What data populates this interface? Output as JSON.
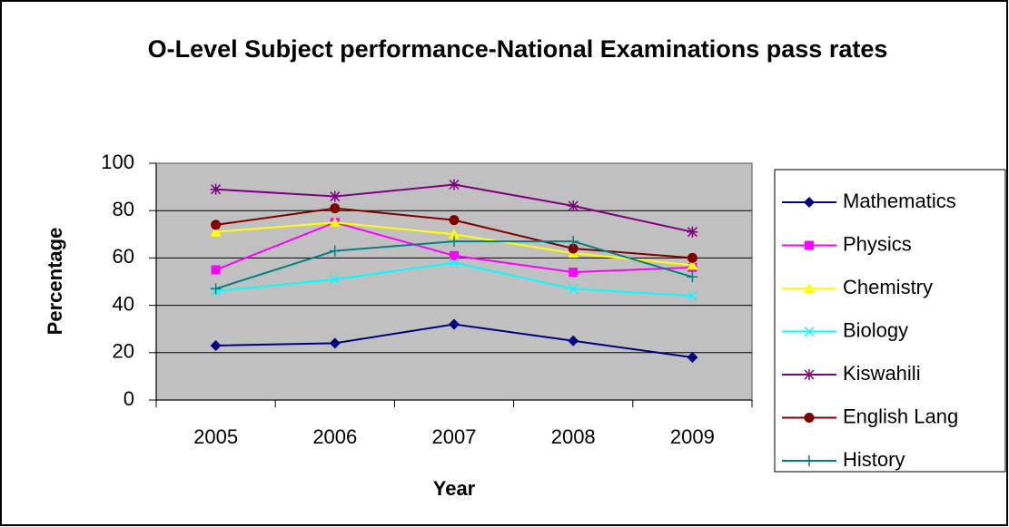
{
  "chart_data": {
    "type": "line",
    "title": "O-Level Subject performance-National Examinations pass rates",
    "x_label": "Year",
    "y_label": "Percentage",
    "categories": [
      "2005",
      "2006",
      "2007",
      "2008",
      "2009"
    ],
    "series": [
      {
        "name": "Mathematics",
        "color": "#000080",
        "marker": "diamond",
        "values": [
          23,
          24,
          32,
          25,
          18
        ]
      },
      {
        "name": "Physics",
        "color": "#ff00ff",
        "marker": "square",
        "values": [
          55,
          75,
          61,
          54,
          56
        ]
      },
      {
        "name": "Chemistry",
        "color": "#ffff00",
        "marker": "triangle",
        "values": [
          71,
          75,
          70,
          62,
          57
        ]
      },
      {
        "name": "Biology",
        "color": "#00ffff",
        "marker": "x",
        "values": [
          46,
          51,
          58,
          47,
          44
        ]
      },
      {
        "name": "Kiswahili",
        "color": "#800080",
        "marker": "asterisk",
        "values": [
          89,
          86,
          91,
          82,
          71
        ]
      },
      {
        "name": "English Lang",
        "color": "#800000",
        "marker": "circle",
        "values": [
          74,
          81,
          76,
          64,
          60
        ]
      },
      {
        "name": "History",
        "color": "#008080",
        "marker": "plus",
        "values": [
          47,
          63,
          67,
          67,
          52
        ]
      }
    ],
    "ylim": [
      0,
      100
    ],
    "yticks": [
      0,
      20,
      40,
      60,
      80,
      100
    ],
    "grid": true,
    "legend": "right"
  }
}
